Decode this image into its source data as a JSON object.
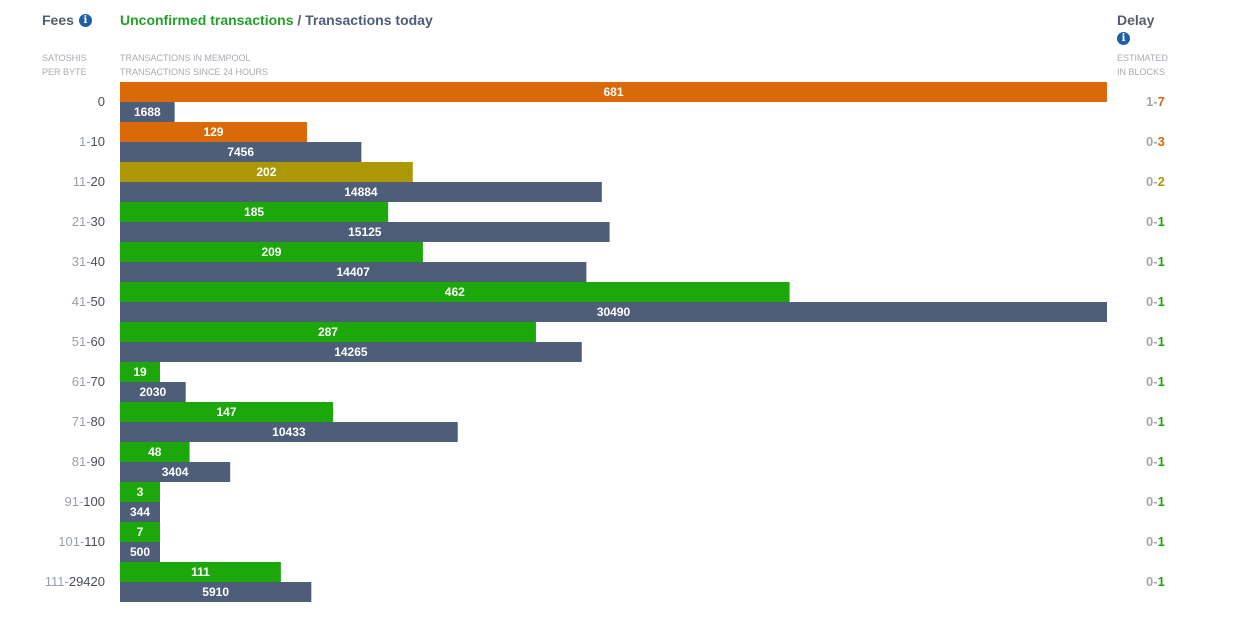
{
  "header": {
    "fees_label": "Fees",
    "title_unconfirmed": "Unconfirmed transactions",
    "title_separator": " / ",
    "title_today": "Transactions today",
    "delay_label": "Delay",
    "fees_sub_1": "SATOSHIS",
    "fees_sub_2": "PER BYTE",
    "tx_sub_1": "TRANSACTIONS IN MEMPOOL",
    "tx_sub_2": "TRANSACTIONS SINCE 24 HOURS",
    "delay_sub_1": "ESTIMATED",
    "delay_sub_2": "IN BLOCKS",
    "info_icon": "info-icon"
  },
  "colors": {
    "orange": "#d96a07",
    "olive": "#ac9806",
    "green": "#1ca80b",
    "slate": "#4e5d78",
    "range_low": "#9aa0a8",
    "range_high": "#4a4f57",
    "delay_low": "#a3a8af"
  },
  "chart_data": {
    "type": "bar",
    "orientation": "horizontal",
    "series": [
      {
        "name": "Unconfirmed transactions",
        "values": [
          681,
          129,
          202,
          185,
          209,
          462,
          287,
          19,
          147,
          48,
          3,
          7,
          111
        ]
      },
      {
        "name": "Transactions today",
        "values": [
          1688,
          7456,
          14884,
          15125,
          14407,
          30490,
          14265,
          2030,
          10433,
          3404,
          344,
          500,
          5910
        ]
      }
    ],
    "rows": [
      {
        "fee_low": "",
        "fee_high": "0",
        "delay_low": "1",
        "delay_high": "7",
        "status": "orange"
      },
      {
        "fee_low": "1",
        "fee_high": "10",
        "delay_low": "0",
        "delay_high": "3",
        "status": "orange"
      },
      {
        "fee_low": "11",
        "fee_high": "20",
        "delay_low": "0",
        "delay_high": "2",
        "status": "olive"
      },
      {
        "fee_low": "21",
        "fee_high": "30",
        "delay_low": "0",
        "delay_high": "1",
        "status": "green"
      },
      {
        "fee_low": "31",
        "fee_high": "40",
        "delay_low": "0",
        "delay_high": "1",
        "status": "green"
      },
      {
        "fee_low": "41",
        "fee_high": "50",
        "delay_low": "0",
        "delay_high": "1",
        "status": "green"
      },
      {
        "fee_low": "51",
        "fee_high": "60",
        "delay_low": "0",
        "delay_high": "1",
        "status": "green"
      },
      {
        "fee_low": "61",
        "fee_high": "70",
        "delay_low": "0",
        "delay_high": "1",
        "status": "green"
      },
      {
        "fee_low": "71",
        "fee_high": "80",
        "delay_low": "0",
        "delay_high": "1",
        "status": "green"
      },
      {
        "fee_low": "81",
        "fee_high": "90",
        "delay_low": "0",
        "delay_high": "1",
        "status": "green"
      },
      {
        "fee_low": "91",
        "fee_high": "100",
        "delay_low": "0",
        "delay_high": "1",
        "status": "green"
      },
      {
        "fee_low": "101",
        "fee_high": "110",
        "delay_low": "0",
        "delay_high": "1",
        "status": "green"
      },
      {
        "fee_low": "111",
        "fee_high": "29420",
        "delay_low": "0",
        "delay_high": "1",
        "status": "green"
      }
    ],
    "grid": false,
    "legend": "none"
  }
}
